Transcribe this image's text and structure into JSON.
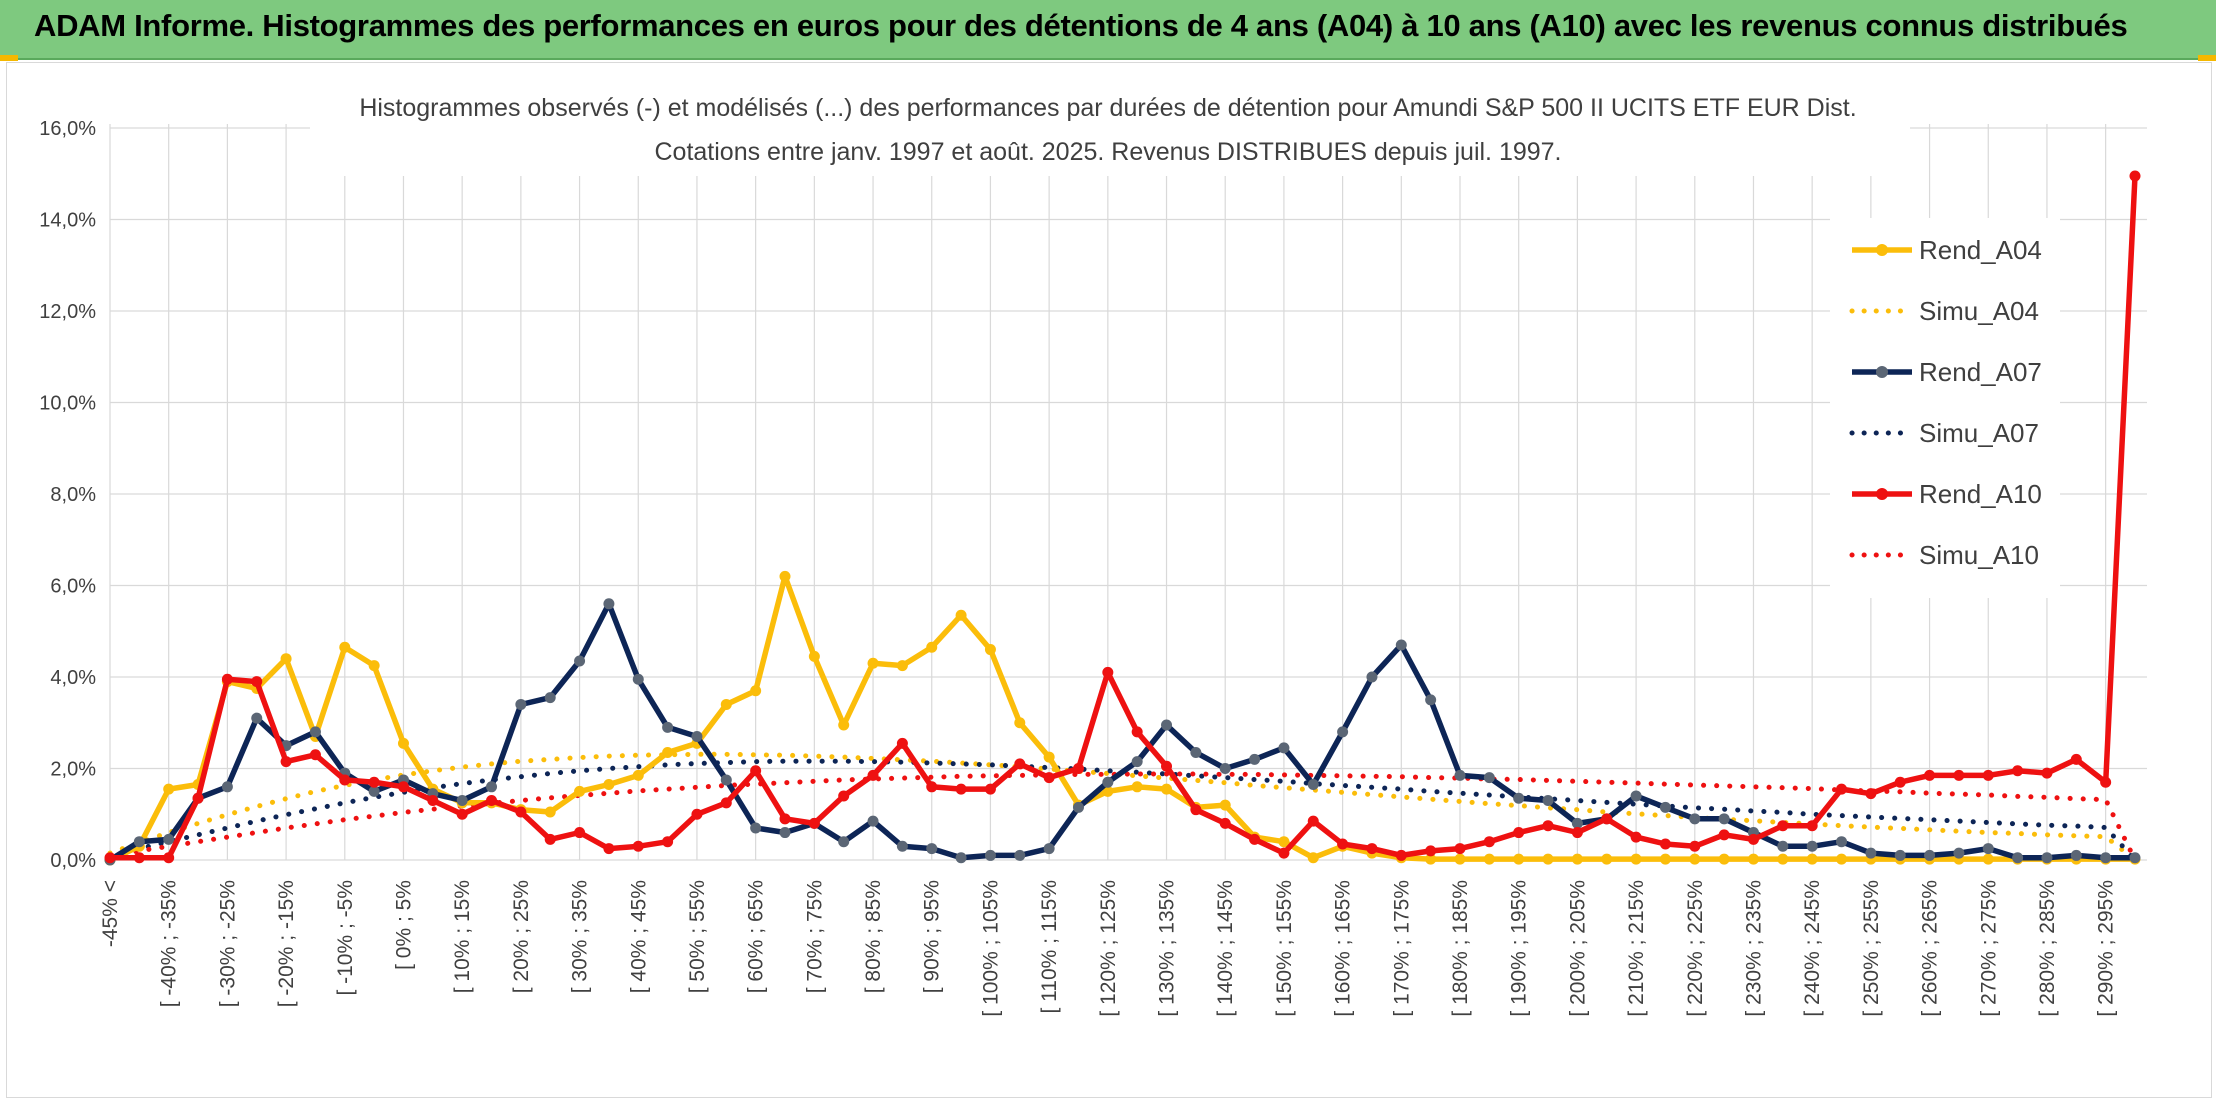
{
  "banner": {
    "title": "ADAM Informe. Histogrammes des performances en euros pour des détentions de 4 ans (A04) à 10 ans (A10) avec les revenus connus distribués"
  },
  "colors": {
    "banner_bg": "#7ec97f",
    "A04": "#fbbd0a",
    "A07": "#0d2556",
    "A10": "#ee1111",
    "grid": "#d9d9d9",
    "text": "#404040"
  },
  "chart_data": {
    "type": "line",
    "title_line1": "Histogrammes observés (-) et modélisés (...) des performances par durées de détention pour Amundi S&P 500 II UCITS ETF EUR Dist.",
    "title_line2": "Cotations entre janv. 1997 et août. 2025. Revenus DISTRIBUES depuis juil. 1997.",
    "ylim": [
      0,
      16
    ],
    "y_ticks": [
      "0,0%",
      "2,0%",
      "4,0%",
      "6,0%",
      "8,0%",
      "10,0%",
      "12,0%",
      "14,0%",
      "16,0%"
    ],
    "grid": true,
    "legend_position": "right",
    "x_labels": [
      "-45% <",
      "[ -40% ; -35%",
      "[ -30% ; -25%",
      "[ -20% ; -15%",
      "[ -10% ; -5%",
      "[ 0% ; 5%",
      "[ 10% ; 15%",
      "[ 20% ; 25%",
      "[ 30% ; 35%",
      "[ 40% ; 45%",
      "[ 50% ; 55%",
      "[ 60% ; 65%",
      "[ 70% ; 75%",
      "[ 80% ; 85%",
      "[ 90% ; 95%",
      "[ 100% ; 105%",
      "[ 110% ; 115%",
      "[ 120% ; 125%",
      "[ 130% ; 135%",
      "[ 140% ; 145%",
      "[ 150% ; 155%",
      "[ 160% ; 165%",
      "[ 170% ; 175%",
      "[ 180% ; 185%",
      "[ 190% ; 195%",
      "[ 200% ; 205%",
      "[ 210% ; 215%",
      "[ 220% ; 225%",
      "[ 230% ; 235%",
      "[ 240% ; 245%",
      "[ 250% ; 255%",
      "[ 260% ; 265%",
      "[ 270% ; 275%",
      "[ 280% ; 285%",
      "[ 290% ; 295%"
    ],
    "series": [
      {
        "name": "Rend_A04",
        "style": "solid",
        "colorKey": "A04",
        "values": [
          0.0,
          0.3,
          1.55,
          1.65,
          3.9,
          3.75,
          4.4,
          2.7,
          4.65,
          4.25,
          2.55,
          1.55,
          1.25,
          1.25,
          1.1,
          1.05,
          1.5,
          1.65,
          1.85,
          2.35,
          2.55,
          3.4,
          3.7,
          6.2,
          4.45,
          2.95,
          4.3,
          4.25,
          4.65,
          5.35,
          4.6,
          3.0,
          2.25,
          1.2,
          1.5,
          1.6,
          1.55,
          1.15,
          1.2,
          0.5,
          0.4,
          0.05,
          0.3,
          0.15,
          0.05,
          0.02,
          0.02,
          0.02,
          0.02,
          0.02,
          0.02,
          0.02,
          0.02,
          0.02,
          0.02,
          0.02,
          0.02,
          0.02,
          0.02,
          0.02,
          0.02,
          0.02,
          0.02,
          0.02,
          0.02,
          0.02,
          0.02,
          0.02,
          0.02,
          0.02
        ]
      },
      {
        "name": "Simu_A04",
        "style": "dotted",
        "colorKey": "A04",
        "values": [
          0.15,
          0.38,
          0.6,
          0.8,
          0.99,
          1.17,
          1.34,
          1.5,
          1.63,
          1.75,
          1.86,
          1.95,
          2.03,
          2.1,
          2.16,
          2.2,
          2.24,
          2.27,
          2.29,
          2.3,
          2.31,
          2.31,
          2.3,
          2.29,
          2.27,
          2.25,
          2.22,
          2.19,
          2.16,
          2.12,
          2.08,
          2.04,
          1.99,
          1.94,
          1.89,
          1.84,
          1.79,
          1.74,
          1.69,
          1.63,
          1.58,
          1.53,
          1.48,
          1.43,
          1.38,
          1.33,
          1.28,
          1.23,
          1.19,
          1.14,
          1.1,
          1.05,
          1.01,
          0.97,
          0.93,
          0.89,
          0.86,
          0.82,
          0.79,
          0.75,
          0.72,
          0.69,
          0.66,
          0.63,
          0.6,
          0.58,
          0.55,
          0.53,
          0.51,
          0.0
        ]
      },
      {
        "name": "Rend_A07",
        "style": "solid",
        "colorKey": "A07",
        "values": [
          0.0,
          0.4,
          0.45,
          1.35,
          1.6,
          3.1,
          2.5,
          2.8,
          1.9,
          1.5,
          1.75,
          1.45,
          1.3,
          1.6,
          3.4,
          3.55,
          4.35,
          5.6,
          3.95,
          2.9,
          2.7,
          1.75,
          0.7,
          0.6,
          0.8,
          0.4,
          0.85,
          0.3,
          0.25,
          0.05,
          0.1,
          0.1,
          0.25,
          1.15,
          1.7,
          2.15,
          2.95,
          2.35,
          2.0,
          2.2,
          2.45,
          1.65,
          2.8,
          4.0,
          4.7,
          3.5,
          1.85,
          1.8,
          1.35,
          1.3,
          0.8,
          0.9,
          1.4,
          1.15,
          0.9,
          0.9,
          0.6,
          0.3,
          0.3,
          0.4,
          0.15,
          0.1,
          0.1,
          0.15,
          0.25,
          0.05,
          0.05,
          0.1,
          0.05,
          0.05
        ]
      },
      {
        "name": "Simu_A07",
        "style": "dotted",
        "colorKey": "A07",
        "values": [
          0.1,
          0.25,
          0.4,
          0.55,
          0.7,
          0.85,
          0.99,
          1.12,
          1.25,
          1.37,
          1.48,
          1.58,
          1.67,
          1.75,
          1.82,
          1.89,
          1.95,
          2.0,
          2.04,
          2.08,
          2.11,
          2.13,
          2.15,
          2.16,
          2.16,
          2.16,
          2.15,
          2.14,
          2.12,
          2.1,
          2.08,
          2.05,
          2.02,
          1.99,
          1.95,
          1.92,
          1.88,
          1.84,
          1.8,
          1.76,
          1.72,
          1.67,
          1.63,
          1.59,
          1.55,
          1.5,
          1.46,
          1.42,
          1.38,
          1.34,
          1.3,
          1.26,
          1.22,
          1.18,
          1.14,
          1.11,
          1.07,
          1.04,
          1.0,
          0.97,
          0.94,
          0.91,
          0.88,
          0.85,
          0.82,
          0.79,
          0.76,
          0.74,
          0.71,
          0.0
        ]
      },
      {
        "name": "Rend_A10",
        "style": "solid",
        "colorKey": "A10",
        "values": [
          0.05,
          0.05,
          0.05,
          1.35,
          3.95,
          3.9,
          2.15,
          2.3,
          1.75,
          1.7,
          1.6,
          1.3,
          1.0,
          1.3,
          1.05,
          0.45,
          0.6,
          0.25,
          0.3,
          0.4,
          1.0,
          1.25,
          1.95,
          0.9,
          0.8,
          1.4,
          1.85,
          2.55,
          1.6,
          1.55,
          1.55,
          2.1,
          1.8,
          2.0,
          4.1,
          2.8,
          2.05,
          1.1,
          0.8,
          0.45,
          0.15,
          0.85,
          0.35,
          0.25,
          0.1,
          0.2,
          0.25,
          0.4,
          0.6,
          0.75,
          0.6,
          0.9,
          0.5,
          0.35,
          0.3,
          0.55,
          0.45,
          0.75,
          0.75,
          1.55,
          1.45,
          1.7,
          1.85,
          1.85,
          1.85,
          1.95,
          1.9,
          2.2,
          1.7,
          14.95
        ]
      },
      {
        "name": "Simu_A10",
        "style": "dotted",
        "colorKey": "A10",
        "values": [
          0.1,
          0.2,
          0.3,
          0.4,
          0.5,
          0.6,
          0.7,
          0.79,
          0.88,
          0.96,
          1.04,
          1.11,
          1.18,
          1.24,
          1.3,
          1.36,
          1.41,
          1.46,
          1.51,
          1.55,
          1.59,
          1.63,
          1.66,
          1.69,
          1.72,
          1.75,
          1.77,
          1.79,
          1.81,
          1.83,
          1.84,
          1.85,
          1.86,
          1.87,
          1.87,
          1.88,
          1.88,
          1.88,
          1.87,
          1.87,
          1.86,
          1.85,
          1.84,
          1.83,
          1.82,
          1.8,
          1.79,
          1.77,
          1.76,
          1.74,
          1.72,
          1.7,
          1.68,
          1.66,
          1.64,
          1.62,
          1.6,
          1.58,
          1.56,
          1.53,
          1.51,
          1.49,
          1.46,
          1.44,
          1.42,
          1.39,
          1.37,
          1.34,
          1.32,
          0.0
        ]
      }
    ]
  }
}
